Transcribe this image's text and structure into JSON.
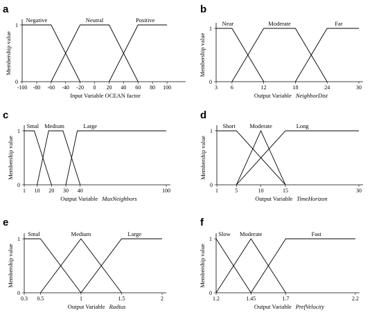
{
  "chart_data": [
    {
      "panel": "a",
      "type": "line",
      "xlabel": "Input Variable  OCEAN  factor",
      "xlabel_italic": "",
      "ylabel": "Membership value",
      "xlim": [
        -100,
        120
      ],
      "ylim": [
        0,
        1
      ],
      "xticks": [
        -100,
        -80,
        -60,
        -40,
        -20,
        0,
        20,
        40,
        60,
        80,
        100
      ],
      "yticks": [
        0,
        1
      ],
      "series": [
        {
          "name": "Negative",
          "x": [
            -100,
            -60,
            -20
          ],
          "y": [
            1,
            1,
            0
          ]
        },
        {
          "name": "Neutral",
          "x": [
            -60,
            -20,
            20,
            60
          ],
          "y": [
            0,
            1,
            1,
            0
          ]
        },
        {
          "name": "Positive",
          "x": [
            20,
            60,
            100
          ],
          "y": [
            0,
            1,
            1
          ]
        }
      ],
      "label_at": [
        -80,
        0,
        70
      ]
    },
    {
      "panel": "b",
      "type": "line",
      "xlabel": "Output Variable",
      "xlabel_italic": "NeighborDist",
      "ylabel": "Membership value",
      "xlim": [
        3,
        30
      ],
      "ylim": [
        0,
        1
      ],
      "xticks": [
        3,
        6,
        12,
        18,
        24,
        30
      ],
      "yticks": [
        0,
        1
      ],
      "series": [
        {
          "name": "Near",
          "x": [
            3,
            6,
            12
          ],
          "y": [
            1,
            1,
            0
          ]
        },
        {
          "name": "Moderate",
          "x": [
            6,
            12,
            18,
            24
          ],
          "y": [
            0,
            1,
            1,
            0
          ]
        },
        {
          "name": "Far",
          "x": [
            18,
            24,
            30
          ],
          "y": [
            0,
            1,
            1
          ]
        }
      ],
      "label_at": [
        5.2,
        15,
        26.2
      ]
    },
    {
      "panel": "c",
      "type": "line",
      "xlabel": "Output Variable",
      "xlabel_italic": "MaxNeighbors",
      "ylabel": "Membership value",
      "xlim": [
        1,
        100
      ],
      "ylim": [
        0,
        1
      ],
      "xticks": [
        1,
        10,
        20,
        30,
        40,
        100
      ],
      "yticks": [
        0,
        1
      ],
      "series": [
        {
          "name": "Smal",
          "x": [
            1,
            8,
            20
          ],
          "y": [
            1,
            1,
            0
          ]
        },
        {
          "name": "Medium",
          "x": [
            10,
            18,
            28,
            40
          ],
          "y": [
            0,
            1,
            1,
            0
          ]
        },
        {
          "name": "Large",
          "x": [
            30,
            38,
            100
          ],
          "y": [
            0,
            1,
            1
          ]
        }
      ],
      "label_at": [
        7,
        22,
        47
      ]
    },
    {
      "panel": "d",
      "type": "line",
      "xlabel": "Output Variable",
      "xlabel_italic": "TimeHorizon",
      "ylabel": "Membership value",
      "xlim": [
        1,
        30
      ],
      "ylim": [
        0,
        1
      ],
      "xticks": [
        1,
        5,
        10,
        15,
        30
      ],
      "yticks": [
        0,
        1
      ],
      "series": [
        {
          "name": "Short",
          "x": [
            1,
            5,
            15
          ],
          "y": [
            1,
            1,
            0
          ]
        },
        {
          "name": "Moderate",
          "x": [
            5,
            10,
            15
          ],
          "y": [
            0,
            1,
            0
          ]
        },
        {
          "name": "Long",
          "x": [
            5,
            15,
            30
          ],
          "y": [
            0,
            1,
            1
          ]
        }
      ],
      "label_at": [
        3.5,
        10,
        18.5
      ]
    },
    {
      "panel": "e",
      "type": "line",
      "xlabel": "Output Variable",
      "xlabel_italic": "Radius",
      "ylabel": "Membership value",
      "xlim": [
        0.3,
        2
      ],
      "ylim": [
        0,
        1
      ],
      "xticks": [
        0.3,
        0.5,
        1,
        1.5,
        2
      ],
      "yticks": [
        0,
        1
      ],
      "series": [
        {
          "name": "Smal",
          "x": [
            0.3,
            0.5,
            1
          ],
          "y": [
            1,
            1,
            0
          ]
        },
        {
          "name": "Medium",
          "x": [
            0.5,
            1,
            1.5
          ],
          "y": [
            0,
            1,
            0
          ]
        },
        {
          "name": "Large",
          "x": [
            1,
            1.5,
            2
          ],
          "y": [
            0,
            1,
            1
          ]
        }
      ],
      "label_at": [
        0.42,
        1,
        1.66
      ]
    },
    {
      "panel": "f",
      "type": "line",
      "xlabel": "Output Variable",
      "xlabel_italic": "PrefVelocity",
      "ylabel": "Membership value",
      "xlim": [
        1.2,
        2.2
      ],
      "ylim": [
        0,
        1
      ],
      "xticks": [
        1.2,
        1.45,
        1.7,
        2.2
      ],
      "yticks": [
        0,
        1
      ],
      "series": [
        {
          "name": "Slow",
          "x": [
            1.2,
            1.45
          ],
          "y": [
            1,
            0
          ]
        },
        {
          "name": "Moderate",
          "x": [
            1.2,
            1.45,
            1.7
          ],
          "y": [
            0,
            1,
            0
          ]
        },
        {
          "name": "Fast",
          "x": [
            1.45,
            1.7,
            2.2
          ],
          "y": [
            0,
            1,
            1
          ]
        }
      ],
      "label_at": [
        1.26,
        1.45,
        1.92
      ]
    }
  ]
}
